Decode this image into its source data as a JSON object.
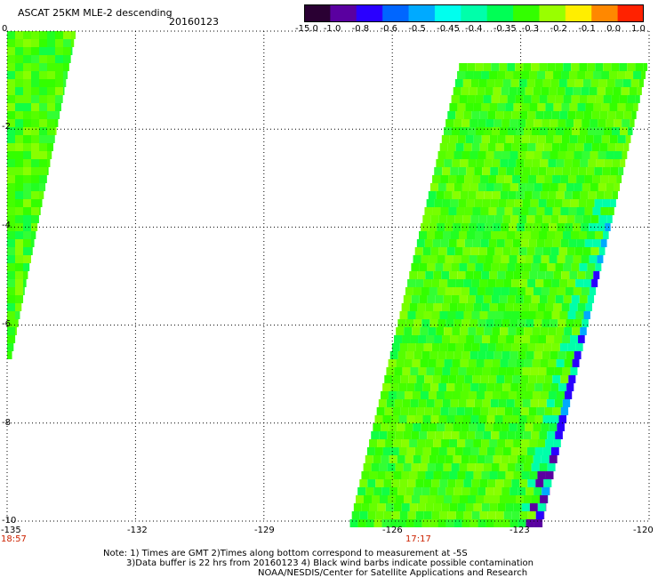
{
  "title": "ASCAT 25KM MLE-2 descending",
  "date": "20160123",
  "colorbar": {
    "labels": [
      "-15.0",
      "-1.0",
      "-0.8",
      "-0.6",
      "-0.5",
      "-0.45",
      "-0.4",
      "-0.35",
      "-0.3",
      "-0.2",
      "-0.1",
      "0.0",
      "1.0"
    ],
    "colors": [
      "#2a0033",
      "#5a00a0",
      "#2a00ff",
      "#0066ff",
      "#00aaff",
      "#00ffee",
      "#00ffaa",
      "#00ff55",
      "#33ff00",
      "#99ff00",
      "#ffee00",
      "#ff8800",
      "#ff2200"
    ]
  },
  "y_axis": {
    "ticks": [
      "0",
      "-2",
      "-4",
      "-6",
      "-8",
      "-10"
    ],
    "values": [
      0,
      -2,
      -4,
      -6,
      -8,
      -10
    ],
    "range": [
      0,
      -10
    ]
  },
  "x_axis": {
    "ticks": [
      "-135",
      "-132",
      "-129",
      "-126",
      "-123",
      "-120"
    ],
    "values": [
      -135,
      -132,
      -129,
      -126,
      -123,
      -120
    ],
    "range": [
      -135,
      -120
    ]
  },
  "times": [
    {
      "label": "18:57",
      "lon": -135
    },
    {
      "label": "17:17",
      "lon": -125.5
    }
  ],
  "notes": {
    "line1": "Note: 1) Times are GMT 2)Times along bottom correspond to measurement at -5S",
    "line2": "3)Data buffer is 22 hrs from 20160123 4) Black wind barbs indicate possible contamination",
    "line3": "NOAA/NESDIS/Center for Satellite Applications and Research"
  },
  "chart_data": {
    "type": "heatmap",
    "title": "ASCAT 25KM MLE-2 descending",
    "xlabel": "",
    "ylabel": "",
    "xlim": [
      -135,
      -120
    ],
    "ylim": [
      -10,
      0
    ],
    "grid": true,
    "swaths": [
      {
        "name": "",
        "lat_top": 0,
        "lat_bottom": -6.6,
        "lon_west_top": -135,
        "lon_east_top": -133.4,
        "lon_west_bottom": -135,
        "lon_east_bottom": -134.9,
        "dominant_value": "-0.3"
      },
      {
        "name": "",
        "lat_top": -0.5,
        "lat_bottom": -10,
        "lon_west_top": -124.4,
        "lon_east_top": -120.0,
        "lon_west_bottom": -127.0,
        "lon_east_bottom": -122.5,
        "dominant_value": "-0.3",
        "east_edge_values": [
          "-0.4",
          "-0.5",
          "-0.8",
          "-1.0"
        ]
      }
    ]
  }
}
